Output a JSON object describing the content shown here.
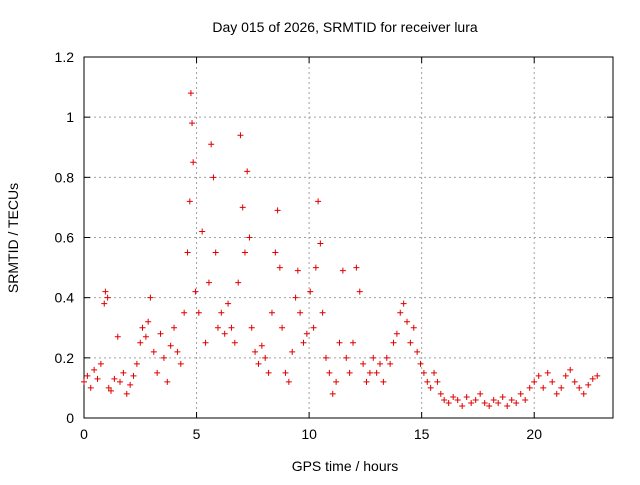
{
  "chart_data": {
    "type": "scatter",
    "title": "Day 015 of 2026, SRMTID for receiver lura",
    "xlabel": "GPS time / hours",
    "ylabel": "SRMTID / TECUs",
    "xlim": [
      0,
      23.5
    ],
    "ylim": [
      0,
      1.2
    ],
    "xticks": [
      0,
      5,
      10,
      15,
      20
    ],
    "xtick_labels": [
      "0",
      "5",
      "10",
      "15",
      "20"
    ],
    "yticks": [
      0,
      0.2,
      0.4,
      0.6,
      0.8,
      1.0,
      1.2
    ],
    "ytick_labels": [
      "0",
      "0.2",
      "0.4",
      "0.6",
      "0.8",
      "1",
      "1.2"
    ],
    "grid": true,
    "marker": "+",
    "color": "#e00000",
    "series": [
      {
        "name": "SRMTID",
        "x": [
          0.0,
          0.15,
          0.3,
          0.45,
          0.6,
          0.75,
          0.9,
          0.95,
          1.05,
          1.1,
          1.2,
          1.35,
          1.5,
          1.6,
          1.75,
          1.9,
          2.05,
          2.2,
          2.35,
          2.5,
          2.6,
          2.75,
          2.85,
          2.95,
          3.1,
          3.25,
          3.4,
          3.55,
          3.7,
          3.85,
          4.0,
          4.15,
          4.3,
          4.45,
          4.6,
          4.7,
          4.75,
          4.8,
          4.85,
          4.95,
          5.1,
          5.25,
          5.4,
          5.55,
          5.65,
          5.75,
          5.85,
          5.95,
          6.1,
          6.25,
          6.4,
          6.55,
          6.7,
          6.85,
          6.95,
          7.05,
          7.15,
          7.25,
          7.35,
          7.45,
          7.6,
          7.75,
          7.9,
          8.05,
          8.2,
          8.35,
          8.5,
          8.6,
          8.7,
          8.8,
          8.95,
          9.1,
          9.25,
          9.4,
          9.5,
          9.6,
          9.75,
          9.9,
          10.05,
          10.2,
          10.3,
          10.4,
          10.5,
          10.6,
          10.75,
          10.9,
          11.05,
          11.2,
          11.35,
          11.5,
          11.65,
          11.8,
          11.95,
          12.1,
          12.25,
          12.4,
          12.55,
          12.7,
          12.85,
          13.0,
          13.15,
          13.3,
          13.45,
          13.6,
          13.75,
          13.9,
          14.05,
          14.2,
          14.35,
          14.5,
          14.65,
          14.8,
          14.95,
          15.1,
          15.25,
          15.4,
          15.55,
          15.7,
          15.85,
          16.0,
          16.2,
          16.4,
          16.6,
          16.8,
          17.0,
          17.2,
          17.4,
          17.6,
          17.8,
          18.0,
          18.2,
          18.4,
          18.6,
          18.8,
          19.0,
          19.2,
          19.4,
          19.6,
          19.8,
          20.0,
          20.2,
          20.4,
          20.6,
          20.8,
          21.0,
          21.2,
          21.4,
          21.6,
          21.8,
          22.0,
          22.2,
          22.4,
          22.6,
          22.8
        ],
        "y": [
          0.12,
          0.14,
          0.1,
          0.16,
          0.13,
          0.18,
          0.38,
          0.42,
          0.4,
          0.1,
          0.09,
          0.13,
          0.27,
          0.12,
          0.15,
          0.08,
          0.11,
          0.14,
          0.18,
          0.25,
          0.3,
          0.27,
          0.32,
          0.4,
          0.22,
          0.15,
          0.28,
          0.2,
          0.12,
          0.24,
          0.3,
          0.22,
          0.18,
          0.35,
          0.55,
          0.72,
          1.08,
          0.98,
          0.85,
          0.42,
          0.35,
          0.62,
          0.25,
          0.45,
          0.91,
          0.8,
          0.55,
          0.3,
          0.35,
          0.28,
          0.38,
          0.3,
          0.25,
          0.45,
          0.94,
          0.7,
          0.55,
          0.82,
          0.6,
          0.3,
          0.22,
          0.18,
          0.24,
          0.2,
          0.15,
          0.35,
          0.55,
          0.69,
          0.5,
          0.3,
          0.15,
          0.12,
          0.22,
          0.4,
          0.49,
          0.35,
          0.25,
          0.28,
          0.42,
          0.3,
          0.5,
          0.72,
          0.58,
          0.35,
          0.2,
          0.15,
          0.08,
          0.12,
          0.25,
          0.49,
          0.2,
          0.15,
          0.25,
          0.5,
          0.42,
          0.18,
          0.12,
          0.15,
          0.2,
          0.15,
          0.18,
          0.12,
          0.2,
          0.18,
          0.25,
          0.28,
          0.35,
          0.38,
          0.32,
          0.25,
          0.3,
          0.22,
          0.18,
          0.15,
          0.12,
          0.1,
          0.15,
          0.12,
          0.08,
          0.06,
          0.05,
          0.07,
          0.06,
          0.04,
          0.07,
          0.05,
          0.06,
          0.08,
          0.05,
          0.04,
          0.06,
          0.05,
          0.07,
          0.04,
          0.06,
          0.05,
          0.08,
          0.06,
          0.1,
          0.12,
          0.14,
          0.1,
          0.15,
          0.12,
          0.08,
          0.1,
          0.14,
          0.16,
          0.12,
          0.1,
          0.08,
          0.11,
          0.13,
          0.14
        ]
      }
    ]
  }
}
